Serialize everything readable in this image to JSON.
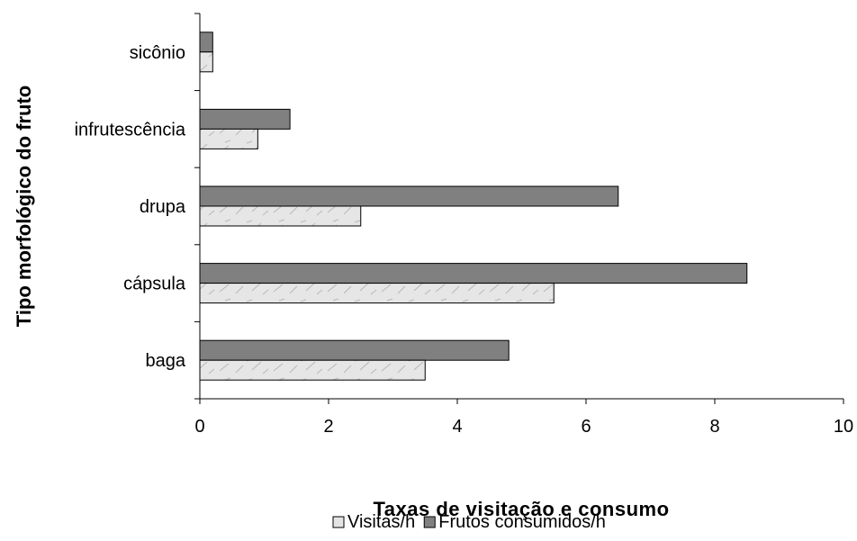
{
  "chart_data": {
    "type": "bar",
    "orientation": "horizontal",
    "categories": [
      "sicônio",
      "infrutescência",
      "drupa",
      "cápsula",
      "baga"
    ],
    "series": [
      {
        "name": "Visitas/h",
        "values": [
          0.2,
          0.9,
          2.5,
          5.5,
          3.5
        ],
        "color": "#e4e4e4"
      },
      {
        "name": "Frutos consumidos/h",
        "values": [
          0.2,
          1.4,
          6.5,
          8.5,
          4.8
        ],
        "color": "#808080"
      }
    ],
    "title": "",
    "xlabel": "Taxas de visitação e consumo",
    "ylabel": "Tipo morfológico do fruto",
    "xlim": [
      0,
      10
    ],
    "xticks": [
      "0",
      "2",
      "4",
      "6",
      "8",
      "10"
    ],
    "grid": false,
    "legend_position": "bottom"
  }
}
